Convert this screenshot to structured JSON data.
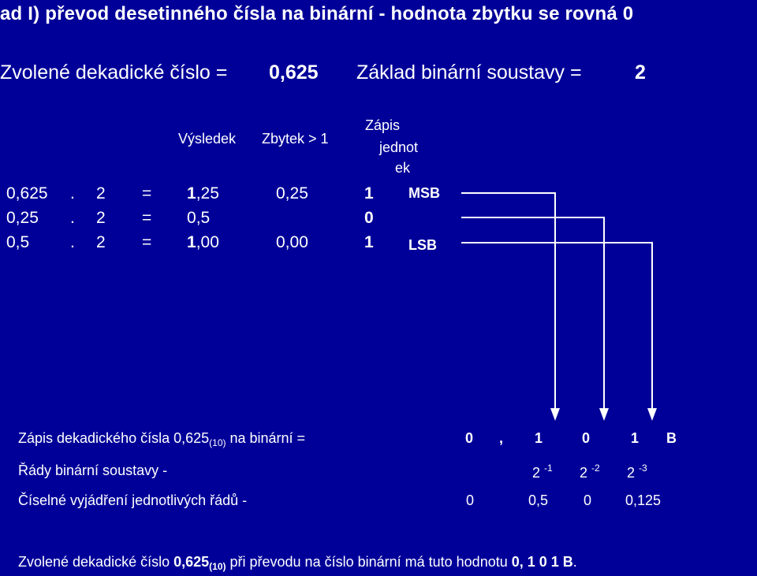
{
  "title": "ad I)  převod desetinného čísla na binární - hodnota  zbytku se rovná 0",
  "chosen_label": "Zvolené dekadické číslo =",
  "chosen_value": "0,625",
  "base_label": "Základ binární soustavy =",
  "base_value": "2",
  "headers": {
    "result": "Výsledek",
    "remainder": "Zbytek > 1",
    "record_line1": "Zápis",
    "record_line2": "jednot",
    "record_line3": "ek"
  },
  "rows": [
    {
      "num": "0,625",
      "dot": ".",
      "mult": "2",
      "eq": "=",
      "res_int": "1",
      "res_frac": ",25",
      "rem": "0,25",
      "bit": "1",
      "tag": "MSB"
    },
    {
      "num": "0,25",
      "dot": ".",
      "mult": "2",
      "eq": "=",
      "res_int": "0",
      "res_frac": ",5",
      "rem": "",
      "bit": "0",
      "tag": ""
    },
    {
      "num": "0,5",
      "dot": ".",
      "mult": "2",
      "eq": "=",
      "res_int": "1",
      "res_frac": ",00",
      "rem": "0,00",
      "bit": "1",
      "tag": "LSB"
    }
  ],
  "record": {
    "text": "Zápis dekadického čísla 0,625",
    "sub": "(10)",
    "text2": " na binární =",
    "digits": [
      "0",
      ",",
      "1",
      "0",
      "1",
      "B"
    ]
  },
  "orders": {
    "label": "Řády binární soustavy -",
    "base": "2",
    "exps": [
      "-1",
      "-2",
      "-3"
    ]
  },
  "values": {
    "label": "Číselné vyjádření jednotlivých řádů -",
    "items": [
      "0",
      "0,5",
      "0",
      "0,125"
    ]
  },
  "final": {
    "text1": "Zvolené dekadické číslo ",
    "num": "0,625",
    "sub": "(10)",
    "text2": " při převodu na číslo binární má tuto hodnotu  ",
    "result": "0, 1 0 1 B",
    "dot": "."
  }
}
